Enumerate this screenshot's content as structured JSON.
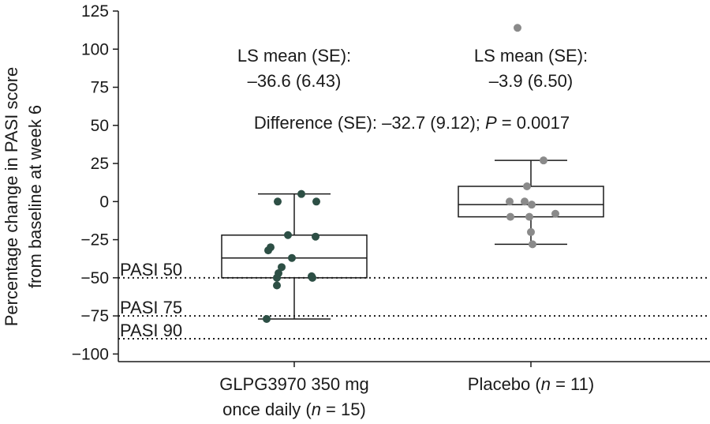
{
  "chart_data": {
    "type": "box",
    "ylabel_lines": [
      "Percentage change in PASI score",
      "from baseline at week 6"
    ],
    "ylim": [
      -105,
      125
    ],
    "yticks": [
      -100,
      -75,
      -50,
      -25,
      0,
      25,
      50,
      75,
      100,
      125
    ],
    "ytick_labels": [
      "−100",
      "−75",
      "−50",
      "−25",
      "0",
      "25",
      "50",
      "75",
      "100",
      "125"
    ],
    "grid": false,
    "categories": [
      {
        "lines": [
          {
            "parts": [
              {
                "text": "GLPG3970 350 mg",
                "italic": false
              }
            ]
          },
          {
            "parts": [
              {
                "text": "once daily (",
                "italic": false
              },
              {
                "text": "n",
                "italic": true
              },
              {
                "text": " = 15)",
                "italic": false
              }
            ]
          }
        ]
      },
      {
        "lines": [
          {
            "parts": [
              {
                "text": "Placebo (",
                "italic": false
              },
              {
                "text": "n",
                "italic": true
              },
              {
                "text": " = 11)",
                "italic": false
              }
            ]
          }
        ]
      }
    ],
    "boxes": [
      {
        "whisker_low": -77,
        "q1": -50,
        "median": -37,
        "q3": -22,
        "whisker_high": 5,
        "color": "#2d4f45",
        "points": [
          5,
          0,
          0,
          -22,
          -23,
          -30,
          -32,
          -37,
          -43,
          -47,
          -49,
          -50,
          -50,
          -55,
          -77
        ]
      },
      {
        "whisker_low": -28,
        "q1": -10,
        "median": -2,
        "q3": 10,
        "whisker_high": 27,
        "color": "#8a8a8a",
        "points": [
          114,
          27,
          10,
          0,
          0,
          -2,
          -8,
          -10,
          -10,
          -20,
          -28
        ]
      }
    ],
    "reference_lines": [
      {
        "y": -50,
        "label": "PASI 50"
      },
      {
        "y": -75,
        "label": "PASI 75"
      },
      {
        "y": -90,
        "label": "PASI 90"
      }
    ],
    "annotations": [
      {
        "line1": "LS mean (SE):",
        "line2": "–36.6 (6.43)"
      },
      {
        "line1": "LS mean (SE):",
        "line2": "–3.9 (6.50)"
      }
    ],
    "difference": {
      "prefix": "Difference (SE): –32.7 (9.12); ",
      "p_symbol": "P",
      "suffix": " = 0.0017"
    }
  }
}
